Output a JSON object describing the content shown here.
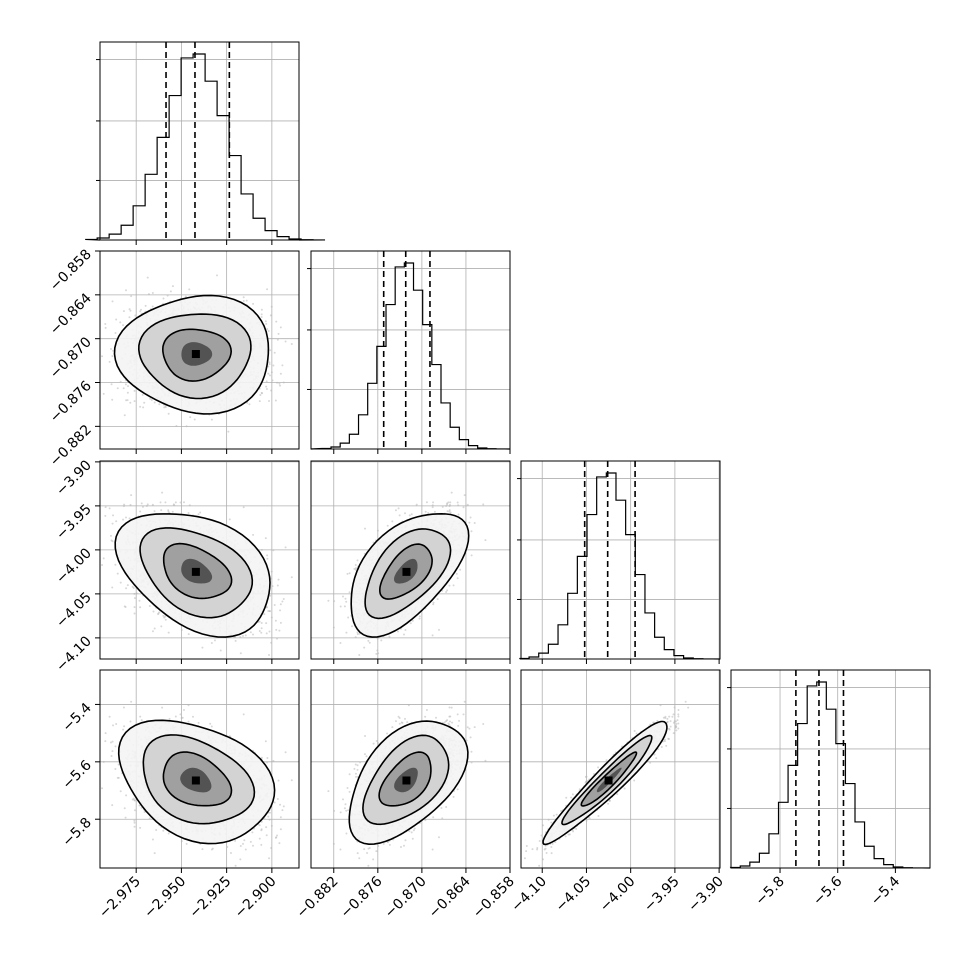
{
  "chart_data": {
    "type": "corner",
    "parameters": [
      {
        "range": [
          -2.995,
          -2.885
        ],
        "ticks": [
          -2.975,
          -2.95,
          -2.925,
          -2.9
        ],
        "tick_labels": [
          "−2.975",
          "−2.950",
          "−2.925",
          "−2.900"
        ],
        "quantiles": [
          -2.9585,
          -2.9425,
          -2.9235
        ],
        "mean": -2.942,
        "sd": 0.017
      },
      {
        "range": [
          -0.8851,
          -0.858
        ],
        "ticks": [
          -0.882,
          -0.876,
          -0.87,
          -0.864,
          -0.858
        ],
        "tick_labels": [
          "−0.882",
          "−0.876",
          "−0.870",
          "−0.864",
          "−0.858"
        ],
        "quantiles": [
          -0.8752,
          -0.8722,
          -0.8689
        ],
        "mean": -0.8721,
        "sd": 0.0032
      },
      {
        "range": [
          -4.124,
          -3.899
        ],
        "ticks": [
          -4.1,
          -4.05,
          -4.0,
          -3.95,
          -3.9
        ],
        "tick_labels": [
          "−4.10",
          "−4.05",
          "−4.00",
          "−3.95",
          "−3.90"
        ],
        "quantiles": [
          -4.052,
          -4.026,
          -3.995
        ],
        "mean": -4.025,
        "sd": 0.028
      },
      {
        "range": [
          -5.97,
          -5.28
        ],
        "ticks": [
          -5.8,
          -5.6,
          -5.4
        ],
        "tick_labels": [
          "−5.8",
          "−5.6",
          "−5.4"
        ],
        "quantiles": [
          -5.745,
          -5.665,
          -5.58
        ],
        "mean": -5.665,
        "sd": 0.085
      }
    ],
    "correlations": [
      [
        1.0,
        0.0,
        -0.35,
        -0.3
      ],
      [
        0.0,
        1.0,
        0.55,
        0.5
      ],
      [
        -0.35,
        0.55,
        1.0,
        0.95
      ],
      [
        -0.3,
        0.5,
        0.95,
        1.0
      ]
    ],
    "histogram": {
      "bins": 20
    },
    "grid": true,
    "axis_label_rotation": 45
  }
}
